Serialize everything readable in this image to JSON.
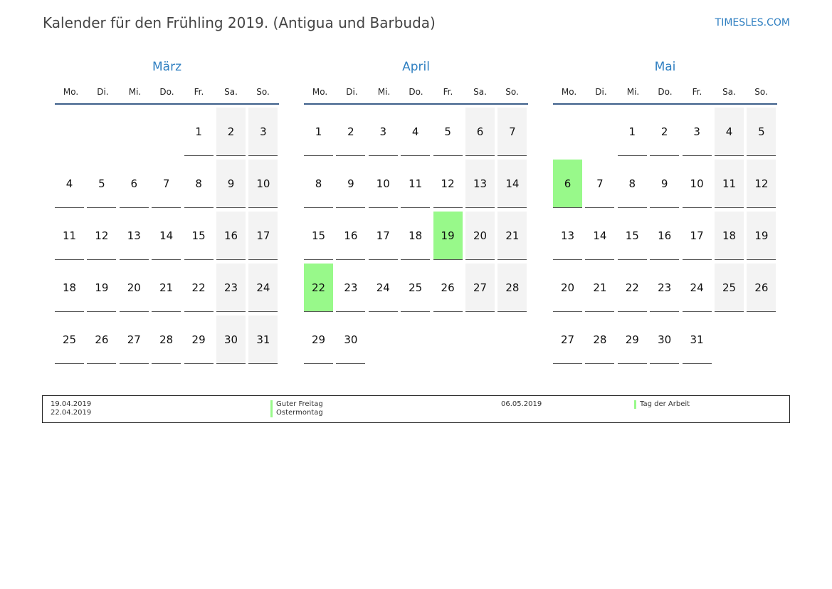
{
  "title": "Kalender für den Frühling 2019. (Antigua und Barbuda)",
  "site": "TIMESLES.COM",
  "colors": {
    "accent": "#2f7fc1",
    "holiday": "#98f98a",
    "weekend": "#f3f3f3"
  },
  "weekdays": [
    "Mo.",
    "Di.",
    "Mi.",
    "Do.",
    "Fr.",
    "Sa.",
    "So."
  ],
  "months": [
    {
      "name": "März",
      "weeks": [
        [
          null,
          null,
          null,
          null,
          1,
          2,
          3
        ],
        [
          4,
          5,
          6,
          7,
          8,
          9,
          10
        ],
        [
          11,
          12,
          13,
          14,
          15,
          16,
          17
        ],
        [
          18,
          19,
          20,
          21,
          22,
          23,
          24
        ],
        [
          25,
          26,
          27,
          28,
          29,
          30,
          31
        ]
      ],
      "holidays": []
    },
    {
      "name": "April",
      "weeks": [
        [
          1,
          2,
          3,
          4,
          5,
          6,
          7
        ],
        [
          8,
          9,
          10,
          11,
          12,
          13,
          14
        ],
        [
          15,
          16,
          17,
          18,
          19,
          20,
          21
        ],
        [
          22,
          23,
          24,
          25,
          26,
          27,
          28
        ],
        [
          29,
          30,
          null,
          null,
          null,
          null,
          null
        ]
      ],
      "holidays": [
        19,
        22
      ]
    },
    {
      "name": "Mai",
      "weeks": [
        [
          null,
          null,
          1,
          2,
          3,
          4,
          5
        ],
        [
          6,
          7,
          8,
          9,
          10,
          11,
          12
        ],
        [
          13,
          14,
          15,
          16,
          17,
          18,
          19
        ],
        [
          20,
          21,
          22,
          23,
          24,
          25,
          26
        ],
        [
          27,
          28,
          29,
          30,
          31,
          null,
          null
        ]
      ],
      "holidays": [
        6
      ]
    }
  ],
  "legend": [
    {
      "dates": [
        "19.04.2019",
        "22.04.2019"
      ],
      "names": [
        "Guter Freitag",
        "Ostermontag"
      ]
    },
    {
      "dates": [
        "06.05.2019"
      ],
      "names": [
        "Tag der Arbeit"
      ]
    }
  ]
}
